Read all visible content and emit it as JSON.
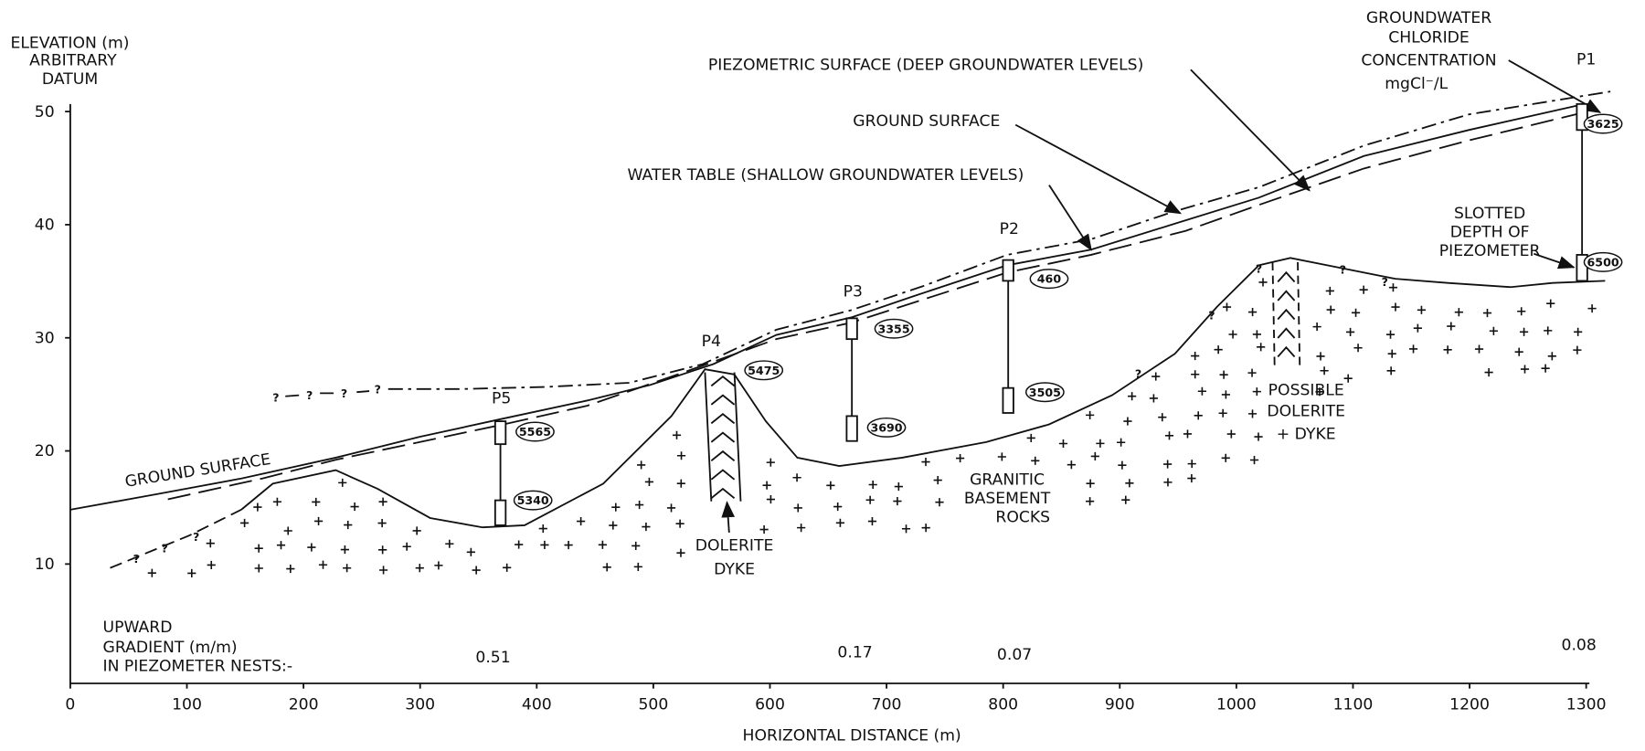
{
  "axes": {
    "y_title": [
      "ELEVATION (m)",
      "ARBITRARY",
      "DATUM"
    ],
    "x_title": "HORIZONTAL DISTANCE (m)",
    "yticks": [
      10,
      20,
      30,
      40,
      50
    ],
    "xticks": [
      0,
      100,
      200,
      300,
      400,
      500,
      600,
      700,
      800,
      900,
      1000,
      1100,
      1200,
      1300
    ]
  },
  "labels": {
    "piezometric_surface": "PIEZOMETRIC SURFACE (DEEP GROUNDWATER LEVELS)",
    "ground_surface_upper": "GROUND SURFACE",
    "ground_surface_lower": "GROUND SURFACE",
    "water_table": "WATER TABLE (SHALLOW GROUNDWATER LEVELS)",
    "chloride": [
      "GROUNDWATER",
      "CHLORIDE",
      "CONCENTRATION",
      "mgCl⁻/L"
    ],
    "slotted_depth": [
      "SLOTTED",
      "DEPTH OF",
      "PIEZOMETER"
    ],
    "basement": [
      "GRANITIC",
      "BASEMENT",
      "ROCKS"
    ],
    "dolerite_dyke": [
      "DOLERITE",
      "DYKE"
    ],
    "possible_dyke": [
      "POSSIBLE",
      "DOLERITE",
      "+ DYKE"
    ],
    "gradient_title": [
      "UPWARD",
      "GRADIENT (m/m)",
      "IN PIEZOMETER NESTS:-"
    ],
    "query_mark": "?"
  },
  "piezometers": [
    {
      "name": "P5",
      "chloride": [
        5565,
        5340
      ],
      "gradient": 0.51
    },
    {
      "name": "P4",
      "chloride": [
        5475
      ]
    },
    {
      "name": "P3",
      "chloride": [
        3355,
        3690
      ],
      "gradient": 0.17
    },
    {
      "name": "P2",
      "chloride": [
        460,
        3505
      ],
      "gradient": 0.07
    },
    {
      "name": "P1",
      "chloride": [
        3625,
        6500
      ],
      "gradient": 0.08
    }
  ]
}
